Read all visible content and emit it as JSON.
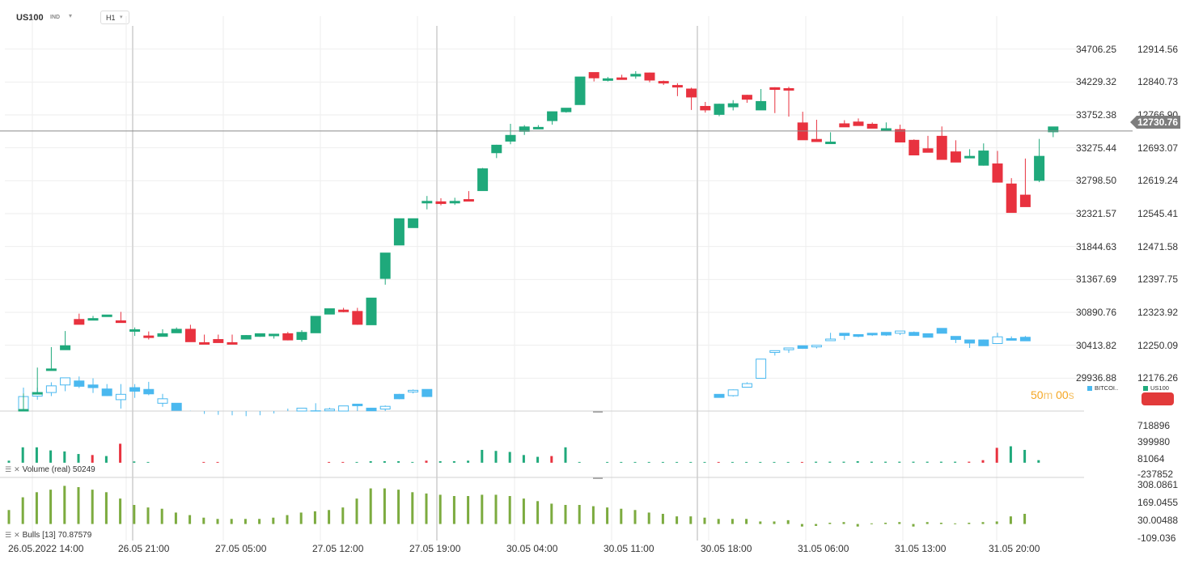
{
  "header": {
    "symbol": "US100",
    "symbol_type": "IND",
    "timeframe": "H1"
  },
  "colors": {
    "bull": "#1fa97b",
    "bear": "#e8323f",
    "overlay": "#4ab8ef",
    "bulls_indicator": "#7cab3f",
    "grid": "#eeeeee",
    "session_line": "#d9d9d9"
  },
  "chart_data": {
    "type": "candlestick",
    "timeframe": "H1",
    "main_axis": {
      "left_ticks": [
        "34706.25",
        "34229.32",
        "33752.38",
        "33275.44",
        "32798.50",
        "32321.57",
        "31844.63",
        "31367.69",
        "30890.76",
        "30413.82",
        "29936.88"
      ],
      "right_ticks": [
        "12914.56",
        "12840.73",
        "12766.90",
        "12693.07",
        "12619.24",
        "12545.41",
        "12471.58",
        "12397.75",
        "12323.92",
        "12250.09",
        "12176.26"
      ],
      "right_range": [
        12102.43,
        12988.39
      ],
      "left_range": [
        29459.94,
        35183.19
      ]
    },
    "current_price": "12730.76",
    "x_labels": [
      "26.05.2022 14:00",
      "26.05 21:00",
      "27.05 05:00",
      "27.05 12:00",
      "27.05 19:00",
      "30.05 04:00",
      "30.05 11:00",
      "30.05 18:00",
      "31.05 06:00",
      "31.05 13:00",
      "31.05 20:00"
    ],
    "series": [
      {
        "name": "US100",
        "ohlc": [
          [
            12106,
            12142,
            12118,
            12106
          ],
          [
            12144,
            12146,
            12200,
            12144
          ],
          [
            12197,
            12205,
            12246,
            12197
          ],
          [
            12240,
            12240,
            12282,
            12249
          ],
          [
            12308,
            12298,
            12321,
            12297
          ],
          [
            12310,
            12316,
            12313,
            12310
          ],
          [
            12316,
            12314,
            12315,
            12318
          ],
          [
            12305,
            12303,
            12325,
            12301
          ],
          [
            12285,
            12271,
            12290,
            12285
          ],
          [
            12271,
            12263,
            12281,
            12269
          ],
          [
            12270,
            12277,
            12286,
            12276
          ],
          [
            12278,
            12281,
            12290,
            12286
          ],
          [
            12286,
            12259,
            12296,
            12258
          ],
          [
            12256,
            12263,
            12274,
            12255
          ],
          [
            12263,
            12257,
            12274,
            12256
          ],
          [
            12256,
            12258,
            12274,
            12253
          ],
          [
            12264,
            12263,
            12273,
            12272
          ],
          [
            12270,
            12269,
            12270,
            12276
          ],
          [
            12273,
            12265,
            12274,
            12275
          ],
          [
            12276,
            12261,
            12280,
            12262
          ],
          [
            12263,
            12258,
            12284,
            12279
          ],
          [
            12278,
            12278,
            12310,
            12315
          ],
          [
            12320,
            12320,
            12332,
            12332
          ],
          [
            12329,
            12324,
            12334,
            12327
          ],
          [
            12326,
            12296,
            12334,
            12297
          ],
          [
            12296,
            12298,
            12355,
            12356
          ],
          [
            12400,
            12386,
            12435,
            12457
          ],
          [
            12475,
            12476,
            12512,
            12534
          ],
          [
            12514,
            12533,
            12530,
            12534
          ],
          [
            12570,
            12555,
            12585,
            12573
          ],
          [
            12572,
            12564,
            12580,
            12568
          ],
          [
            12572,
            12565,
            12581,
            12573
          ],
          [
            12577,
            12574,
            12596,
            12576
          ],
          [
            12597,
            12627,
            12648,
            12646
          ],
          [
            12682,
            12670,
            12700,
            12699
          ],
          [
            12708,
            12701,
            12747,
            12721
          ],
          [
            12730,
            12722,
            12744,
            12740
          ],
          [
            12738,
            12738,
            12744,
            12739
          ],
          [
            12754,
            12745,
            12769,
            12774
          ],
          [
            12774,
            12772,
            12778,
            12782
          ],
          [
            12790,
            12790,
            12852,
            12852
          ],
          [
            12862,
            12842,
            12862,
            12850
          ],
          [
            12847,
            12842,
            12852,
            12848
          ],
          [
            12850,
            12847,
            12857,
            12847
          ],
          [
            12854,
            12848,
            12865,
            12858
          ],
          [
            12861,
            12840,
            12862,
            12845
          ],
          [
            12842,
            12834,
            12844,
            12840
          ],
          [
            12833,
            12809,
            12838,
            12830
          ],
          [
            12825,
            12778,
            12828,
            12807
          ],
          [
            12786,
            12772,
            12796,
            12778
          ],
          [
            12768,
            12764,
            12792,
            12791
          ],
          [
            12785,
            12777,
            12800,
            12792
          ],
          [
            12811,
            12794,
            12812,
            12802
          ],
          [
            12778,
            12778,
            12825,
            12797
          ],
          [
            12828,
            12771,
            12829,
            12824
          ],
          [
            12826,
            12763,
            12830,
            12823
          ],
          [
            12749,
            12741,
            12774,
            12711
          ],
          [
            12712,
            12707,
            12756,
            12707
          ],
          [
            12706,
            12705,
            12728,
            12706
          ],
          [
            12747,
            12752,
            12755,
            12740
          ],
          [
            12751,
            12750,
            12759,
            12743
          ],
          [
            12746,
            12744,
            12750,
            12737
          ],
          [
            12736,
            12733,
            12750,
            12736
          ],
          [
            12734,
            12716,
            12745,
            12706
          ],
          [
            12710,
            12689,
            12712,
            12677
          ],
          [
            12691,
            12687,
            12720,
            12683
          ],
          [
            12719,
            12673,
            12741,
            12667
          ],
          [
            12684,
            12673,
            12710,
            12661
          ],
          [
            12674,
            12687,
            12690,
            12674
          ],
          [
            12654,
            12653,
            12703,
            12686
          ],
          [
            12657,
            12622,
            12686,
            12616
          ],
          [
            12612,
            12579,
            12625,
            12548
          ],
          [
            12587,
            12623,
            12669,
            12561
          ],
          [
            12620,
            12616,
            12713,
            12674
          ],
          [
            12729,
            12717,
            12722,
            12740
          ]
        ]
      },
      {
        "name": "BITCOI..",
        "ohlc": [
          [
            12106,
            12155,
            12116,
            12135
          ],
          [
            12136,
            12155,
            12128,
            12144
          ],
          [
            12144,
            12167,
            12136,
            12159
          ],
          [
            12161,
            12177,
            12147,
            12177
          ],
          [
            12170,
            12180,
            12154,
            12158
          ],
          [
            12161,
            12176,
            12143,
            12155
          ],
          [
            12152,
            12163,
            12136,
            12137
          ],
          [
            12128,
            12163,
            12108,
            12140
          ],
          [
            12155,
            12163,
            12132,
            12147
          ],
          [
            12151,
            12168,
            12138,
            12141
          ],
          [
            12120,
            12141,
            12112,
            12130
          ],
          [
            12120,
            12118,
            12104,
            12104
          ],
          [
            12097,
            12103,
            12094,
            12094
          ],
          [
            12096,
            12091,
            12086,
            12085
          ],
          [
            12094,
            12090,
            12087,
            12088
          ],
          [
            12089,
            12093,
            12086,
            12084
          ],
          [
            12089,
            12091,
            12085,
            12083
          ],
          [
            12093,
            12090,
            12093,
            12090
          ],
          [
            12097,
            12097,
            12085,
            12085
          ],
          [
            12100,
            12108,
            12092,
            12096
          ],
          [
            12095,
            12109,
            12092,
            12109
          ],
          [
            12103,
            12120,
            12086,
            12087
          ],
          [
            12103,
            12110,
            12099,
            12107
          ],
          [
            12102,
            12112,
            12098,
            12114
          ],
          [
            12118,
            12116,
            12091,
            12115
          ],
          [
            12109,
            12099,
            12102,
            12103
          ],
          [
            12107,
            12115,
            12099,
            12113
          ],
          [
            12140,
            12141,
            12129,
            12130
          ],
          [
            12148,
            12142,
            12151,
            12149
          ],
          [
            12151,
            12151,
            12134,
            12135
          ],
          [
            12140,
            12139,
            12138,
            12133
          ],
          [
            12137,
            12151,
            12135,
            12150
          ],
          [
            12156,
            12167,
            12157,
            12164
          ],
          [
            12176,
            12214,
            12190,
            12219
          ],
          [
            12234,
            12227,
            12231,
            12238
          ],
          [
            12240,
            12233,
            12244,
            12244
          ],
          [
            12249,
            12245,
            12242,
            12243
          ],
          [
            12248,
            12250,
            12243,
            12250
          ],
          [
            12261,
            12278,
            12264,
            12264
          ],
          [
            12277,
            12262,
            12270,
            12272
          ],
          [
            12274,
            12268,
            12274,
            12270
          ],
          [
            12277,
            12276,
            12271,
            12275
          ],
          [
            12279,
            12271,
            12273,
            12273
          ],
          [
            12277,
            12281,
            12273,
            12282
          ],
          [
            12279,
            12281,
            12274,
            12272
          ],
          [
            12276,
            12275,
            12268,
            12268
          ],
          [
            12288,
            12286,
            12278,
            12277
          ],
          [
            12270,
            12265,
            12255,
            12263
          ],
          [
            12262,
            12251,
            12244,
            12255
          ],
          [
            12262,
            12256,
            12263,
            12249
          ],
          [
            12254,
            12278,
            12258,
            12269
          ],
          [
            12265,
            12262,
            12270,
            12263
          ],
          [
            12268,
            12271,
            12265,
            12260
          ]
        ]
      }
    ],
    "volume_panel": {
      "label": "Volume",
      "label_suffix": "(real)",
      "value": "50249",
      "ticks": [
        "718896",
        "399980",
        "81064",
        "-237852"
      ],
      "range": [
        -286000,
        990000
      ]
    },
    "bulls_panel": {
      "label": "Bulls",
      "period": "[13]",
      "value": "70.87579",
      "ticks": [
        "308.0861",
        "169.0455",
        "30.00488",
        "-109.036"
      ],
      "range": [
        -130000,
        360000
      ]
    },
    "timer": {
      "minutes": "50",
      "m_unit": "m",
      "seconds": "00",
      "s_unit": "s"
    },
    "legend": [
      "BITCOI..",
      "US100"
    ]
  }
}
